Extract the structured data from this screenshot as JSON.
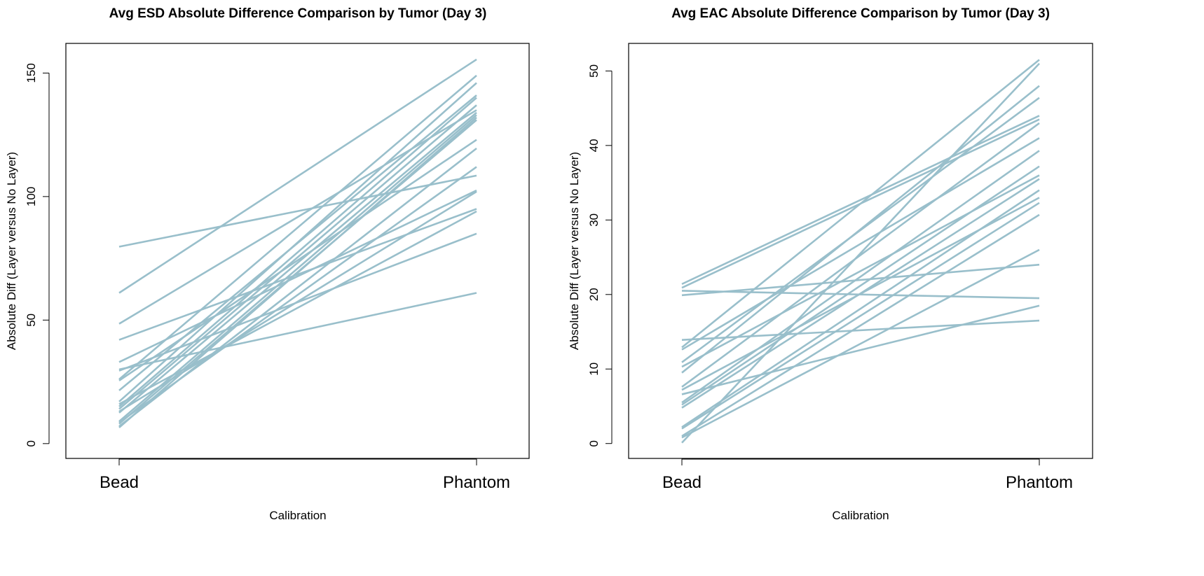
{
  "chart_data": [
    {
      "type": "line",
      "title": "Avg ESD Absolute Difference Comparison by Tumor (Day 3)",
      "xlabel": "Calibration",
      "ylabel": "Absolute Diff (Layer versus No Layer)",
      "categories": [
        "Bead",
        "Phantom"
      ],
      "ylim": [
        -6,
        162
      ],
      "yticks": [
        0,
        50,
        100,
        150
      ],
      "grid": false,
      "line_color": "#99bfcb",
      "series": [
        [
          79.7,
          108.5
        ],
        [
          61,
          155.5
        ],
        [
          48.5,
          135
        ],
        [
          42,
          95
        ],
        [
          33,
          102.5
        ],
        [
          30,
          61
        ],
        [
          29.5,
          85
        ],
        [
          26,
          149
        ],
        [
          25.5,
          123
        ],
        [
          21.5,
          141
        ],
        [
          17,
          146
        ],
        [
          16,
          94
        ],
        [
          15,
          140
        ],
        [
          14,
          137
        ],
        [
          13,
          102
        ],
        [
          12.5,
          134
        ],
        [
          9,
          133
        ],
        [
          8.5,
          112
        ],
        [
          8,
          131
        ],
        [
          7,
          119.5
        ],
        [
          6.5,
          132
        ]
      ]
    },
    {
      "type": "line",
      "title": "Avg EAC Absolute Difference Comparison by Tumor (Day 3)",
      "xlabel": "Calibration",
      "ylabel": "Absolute Diff (Layer versus No Layer)",
      "categories": [
        "Bead",
        "Phantom"
      ],
      "ylim": [
        -2,
        53.7
      ],
      "yticks": [
        0,
        10,
        20,
        30,
        40,
        50
      ],
      "grid": false,
      "line_color": "#99bfcb",
      "series": [
        [
          21.4,
          44
        ],
        [
          20.9,
          43.5
        ],
        [
          20.5,
          19.5
        ],
        [
          19.9,
          24
        ],
        [
          13.9,
          16.5
        ],
        [
          12.9,
          51.5
        ],
        [
          12.6,
          41
        ],
        [
          10.9,
          46.4
        ],
        [
          10.3,
          36
        ],
        [
          9.5,
          48
        ],
        [
          7.6,
          43
        ],
        [
          7.2,
          33
        ],
        [
          6.6,
          18.5
        ],
        [
          5.5,
          39.3
        ],
        [
          5.2,
          37.2
        ],
        [
          4.8,
          35.5
        ],
        [
          2.2,
          34
        ],
        [
          2.0,
          32.3
        ],
        [
          1.0,
          30.7
        ],
        [
          0.8,
          26
        ],
        [
          0.1,
          51
        ]
      ]
    }
  ]
}
